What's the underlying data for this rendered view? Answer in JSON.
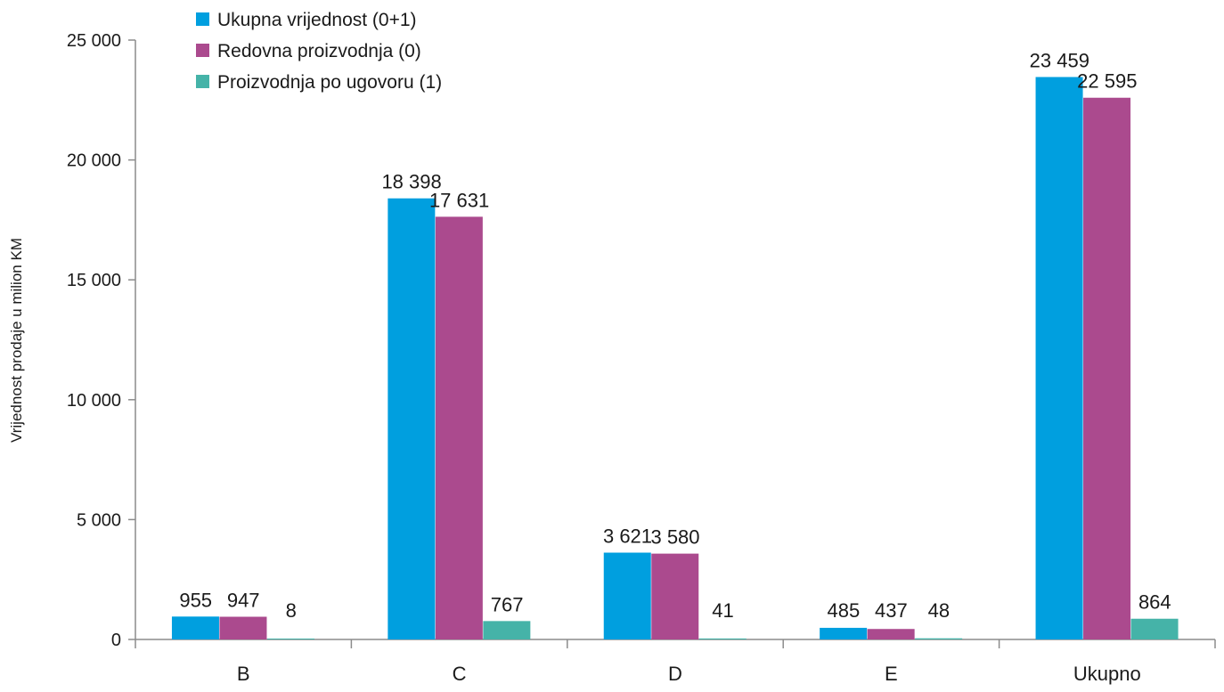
{
  "chart_data": {
    "type": "bar",
    "title": "",
    "xlabel": "",
    "ylabel": "Vrijednost prodaje u milion KM",
    "ylim": [
      0,
      25000
    ],
    "yticks": [
      0,
      5000,
      10000,
      15000,
      20000,
      25000
    ],
    "ytick_labels": [
      "0",
      "5 000",
      "10 000",
      "15 000",
      "20 000",
      "25 000"
    ],
    "categories": [
      "B",
      "C",
      "D",
      "E",
      "Ukupno"
    ],
    "series": [
      {
        "name": "Ukupna vrijednost (0+1)",
        "color": "#009fdf",
        "values": [
          955,
          18398,
          3621,
          485,
          23459
        ],
        "labels": [
          "955",
          "18 398",
          "3 621",
          "485",
          "23 459"
        ]
      },
      {
        "name": "Redovna proizvodnja (0)",
        "color": "#ab4a8e",
        "values": [
          947,
          17631,
          3580,
          437,
          22595
        ],
        "labels": [
          "947",
          "17 631",
          "3 580",
          "437",
          "22 595"
        ]
      },
      {
        "name": "Proizvodnja po ugovoru (1)",
        "color": "#45b3a8",
        "values": [
          8,
          767,
          41,
          48,
          864
        ],
        "labels": [
          "8",
          "767",
          "41",
          "48",
          "864"
        ]
      }
    ],
    "legend_position": "top-left",
    "grid": false
  }
}
